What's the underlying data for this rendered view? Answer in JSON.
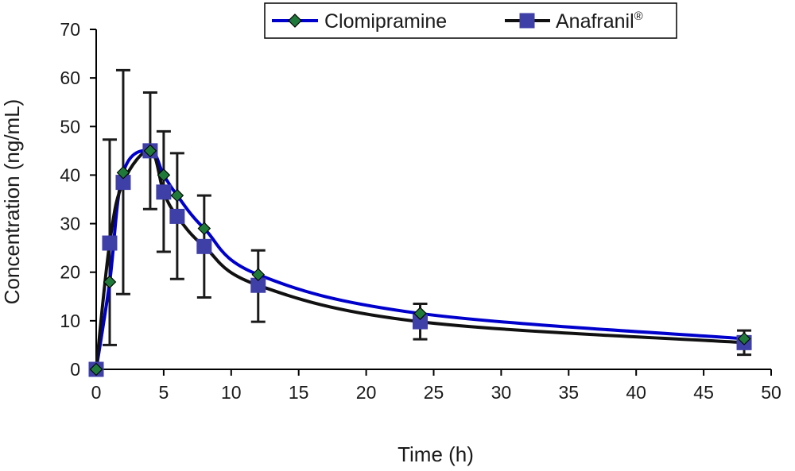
{
  "chart_data": {
    "type": "line",
    "xlabel": "Time (h)",
    "ylabel": "Concentration (ng/mL)",
    "xlim": [
      0,
      50
    ],
    "ylim": [
      0,
      70
    ],
    "x_ticks": [
      0,
      5,
      10,
      15,
      20,
      25,
      30,
      35,
      40,
      45,
      50
    ],
    "y_ticks": [
      0,
      10,
      20,
      30,
      40,
      50,
      60,
      70
    ],
    "grid": false,
    "legend_position": "top-right",
    "series": [
      {
        "name": "Clomipramine",
        "color": "#0000cc",
        "marker": "diamond",
        "marker_color": "#1f7a3a",
        "x": [
          0,
          1,
          2,
          4,
          5,
          6,
          8,
          12,
          24,
          48
        ],
        "y": [
          0,
          18,
          40.5,
          45,
          40,
          35.8,
          29,
          19.5,
          11.5,
          6.3
        ]
      },
      {
        "name": "Anafranil",
        "name_sup": "®",
        "color": "#111111",
        "marker": "square",
        "marker_color": "#3f3fa8",
        "x": [
          0,
          1,
          2,
          4,
          5,
          6,
          8,
          12,
          24,
          48
        ],
        "y": [
          0,
          26,
          38.5,
          45,
          36.5,
          31.5,
          25.3,
          17.3,
          9.8,
          5.5
        ],
        "error_upper": [
          0,
          47.3,
          61.6,
          57,
          49,
          44.5,
          35.8,
          24.5,
          13.5,
          8
        ],
        "error_lower": [
          0,
          5,
          15.5,
          33,
          24.2,
          18.6,
          14.8,
          9.8,
          6.2,
          3
        ]
      }
    ]
  }
}
